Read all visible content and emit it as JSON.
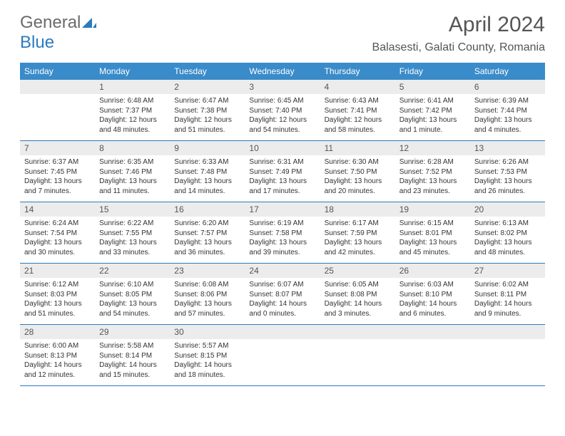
{
  "brand": {
    "part1": "General",
    "part2": "Blue"
  },
  "title": "April 2024",
  "location": "Balasesti, Galati County, Romania",
  "colors": {
    "header_bg": "#3a8bc9",
    "header_text": "#ffffff",
    "daynum_bg": "#ececec",
    "border": "#2b7bbf",
    "text": "#333333",
    "title_text": "#555555",
    "brand_gray": "#6a6a6a",
    "brand_blue": "#2b7bbf"
  },
  "weekdays": [
    "Sunday",
    "Monday",
    "Tuesday",
    "Wednesday",
    "Thursday",
    "Friday",
    "Saturday"
  ],
  "weeks": [
    [
      {
        "num": "",
        "sunrise": "",
        "sunset": "",
        "daylight1": "",
        "daylight2": ""
      },
      {
        "num": "1",
        "sunrise": "Sunrise: 6:48 AM",
        "sunset": "Sunset: 7:37 PM",
        "daylight1": "Daylight: 12 hours",
        "daylight2": "and 48 minutes."
      },
      {
        "num": "2",
        "sunrise": "Sunrise: 6:47 AM",
        "sunset": "Sunset: 7:38 PM",
        "daylight1": "Daylight: 12 hours",
        "daylight2": "and 51 minutes."
      },
      {
        "num": "3",
        "sunrise": "Sunrise: 6:45 AM",
        "sunset": "Sunset: 7:40 PM",
        "daylight1": "Daylight: 12 hours",
        "daylight2": "and 54 minutes."
      },
      {
        "num": "4",
        "sunrise": "Sunrise: 6:43 AM",
        "sunset": "Sunset: 7:41 PM",
        "daylight1": "Daylight: 12 hours",
        "daylight2": "and 58 minutes."
      },
      {
        "num": "5",
        "sunrise": "Sunrise: 6:41 AM",
        "sunset": "Sunset: 7:42 PM",
        "daylight1": "Daylight: 13 hours",
        "daylight2": "and 1 minute."
      },
      {
        "num": "6",
        "sunrise": "Sunrise: 6:39 AM",
        "sunset": "Sunset: 7:44 PM",
        "daylight1": "Daylight: 13 hours",
        "daylight2": "and 4 minutes."
      }
    ],
    [
      {
        "num": "7",
        "sunrise": "Sunrise: 6:37 AM",
        "sunset": "Sunset: 7:45 PM",
        "daylight1": "Daylight: 13 hours",
        "daylight2": "and 7 minutes."
      },
      {
        "num": "8",
        "sunrise": "Sunrise: 6:35 AM",
        "sunset": "Sunset: 7:46 PM",
        "daylight1": "Daylight: 13 hours",
        "daylight2": "and 11 minutes."
      },
      {
        "num": "9",
        "sunrise": "Sunrise: 6:33 AM",
        "sunset": "Sunset: 7:48 PM",
        "daylight1": "Daylight: 13 hours",
        "daylight2": "and 14 minutes."
      },
      {
        "num": "10",
        "sunrise": "Sunrise: 6:31 AM",
        "sunset": "Sunset: 7:49 PM",
        "daylight1": "Daylight: 13 hours",
        "daylight2": "and 17 minutes."
      },
      {
        "num": "11",
        "sunrise": "Sunrise: 6:30 AM",
        "sunset": "Sunset: 7:50 PM",
        "daylight1": "Daylight: 13 hours",
        "daylight2": "and 20 minutes."
      },
      {
        "num": "12",
        "sunrise": "Sunrise: 6:28 AM",
        "sunset": "Sunset: 7:52 PM",
        "daylight1": "Daylight: 13 hours",
        "daylight2": "and 23 minutes."
      },
      {
        "num": "13",
        "sunrise": "Sunrise: 6:26 AM",
        "sunset": "Sunset: 7:53 PM",
        "daylight1": "Daylight: 13 hours",
        "daylight2": "and 26 minutes."
      }
    ],
    [
      {
        "num": "14",
        "sunrise": "Sunrise: 6:24 AM",
        "sunset": "Sunset: 7:54 PM",
        "daylight1": "Daylight: 13 hours",
        "daylight2": "and 30 minutes."
      },
      {
        "num": "15",
        "sunrise": "Sunrise: 6:22 AM",
        "sunset": "Sunset: 7:55 PM",
        "daylight1": "Daylight: 13 hours",
        "daylight2": "and 33 minutes."
      },
      {
        "num": "16",
        "sunrise": "Sunrise: 6:20 AM",
        "sunset": "Sunset: 7:57 PM",
        "daylight1": "Daylight: 13 hours",
        "daylight2": "and 36 minutes."
      },
      {
        "num": "17",
        "sunrise": "Sunrise: 6:19 AM",
        "sunset": "Sunset: 7:58 PM",
        "daylight1": "Daylight: 13 hours",
        "daylight2": "and 39 minutes."
      },
      {
        "num": "18",
        "sunrise": "Sunrise: 6:17 AM",
        "sunset": "Sunset: 7:59 PM",
        "daylight1": "Daylight: 13 hours",
        "daylight2": "and 42 minutes."
      },
      {
        "num": "19",
        "sunrise": "Sunrise: 6:15 AM",
        "sunset": "Sunset: 8:01 PM",
        "daylight1": "Daylight: 13 hours",
        "daylight2": "and 45 minutes."
      },
      {
        "num": "20",
        "sunrise": "Sunrise: 6:13 AM",
        "sunset": "Sunset: 8:02 PM",
        "daylight1": "Daylight: 13 hours",
        "daylight2": "and 48 minutes."
      }
    ],
    [
      {
        "num": "21",
        "sunrise": "Sunrise: 6:12 AM",
        "sunset": "Sunset: 8:03 PM",
        "daylight1": "Daylight: 13 hours",
        "daylight2": "and 51 minutes."
      },
      {
        "num": "22",
        "sunrise": "Sunrise: 6:10 AM",
        "sunset": "Sunset: 8:05 PM",
        "daylight1": "Daylight: 13 hours",
        "daylight2": "and 54 minutes."
      },
      {
        "num": "23",
        "sunrise": "Sunrise: 6:08 AM",
        "sunset": "Sunset: 8:06 PM",
        "daylight1": "Daylight: 13 hours",
        "daylight2": "and 57 minutes."
      },
      {
        "num": "24",
        "sunrise": "Sunrise: 6:07 AM",
        "sunset": "Sunset: 8:07 PM",
        "daylight1": "Daylight: 14 hours",
        "daylight2": "and 0 minutes."
      },
      {
        "num": "25",
        "sunrise": "Sunrise: 6:05 AM",
        "sunset": "Sunset: 8:08 PM",
        "daylight1": "Daylight: 14 hours",
        "daylight2": "and 3 minutes."
      },
      {
        "num": "26",
        "sunrise": "Sunrise: 6:03 AM",
        "sunset": "Sunset: 8:10 PM",
        "daylight1": "Daylight: 14 hours",
        "daylight2": "and 6 minutes."
      },
      {
        "num": "27",
        "sunrise": "Sunrise: 6:02 AM",
        "sunset": "Sunset: 8:11 PM",
        "daylight1": "Daylight: 14 hours",
        "daylight2": "and 9 minutes."
      }
    ],
    [
      {
        "num": "28",
        "sunrise": "Sunrise: 6:00 AM",
        "sunset": "Sunset: 8:13 PM",
        "daylight1": "Daylight: 14 hours",
        "daylight2": "and 12 minutes."
      },
      {
        "num": "29",
        "sunrise": "Sunrise: 5:58 AM",
        "sunset": "Sunset: 8:14 PM",
        "daylight1": "Daylight: 14 hours",
        "daylight2": "and 15 minutes."
      },
      {
        "num": "30",
        "sunrise": "Sunrise: 5:57 AM",
        "sunset": "Sunset: 8:15 PM",
        "daylight1": "Daylight: 14 hours",
        "daylight2": "and 18 minutes."
      },
      {
        "num": "",
        "sunrise": "",
        "sunset": "",
        "daylight1": "",
        "daylight2": ""
      },
      {
        "num": "",
        "sunrise": "",
        "sunset": "",
        "daylight1": "",
        "daylight2": ""
      },
      {
        "num": "",
        "sunrise": "",
        "sunset": "",
        "daylight1": "",
        "daylight2": ""
      },
      {
        "num": "",
        "sunrise": "",
        "sunset": "",
        "daylight1": "",
        "daylight2": ""
      }
    ]
  ]
}
